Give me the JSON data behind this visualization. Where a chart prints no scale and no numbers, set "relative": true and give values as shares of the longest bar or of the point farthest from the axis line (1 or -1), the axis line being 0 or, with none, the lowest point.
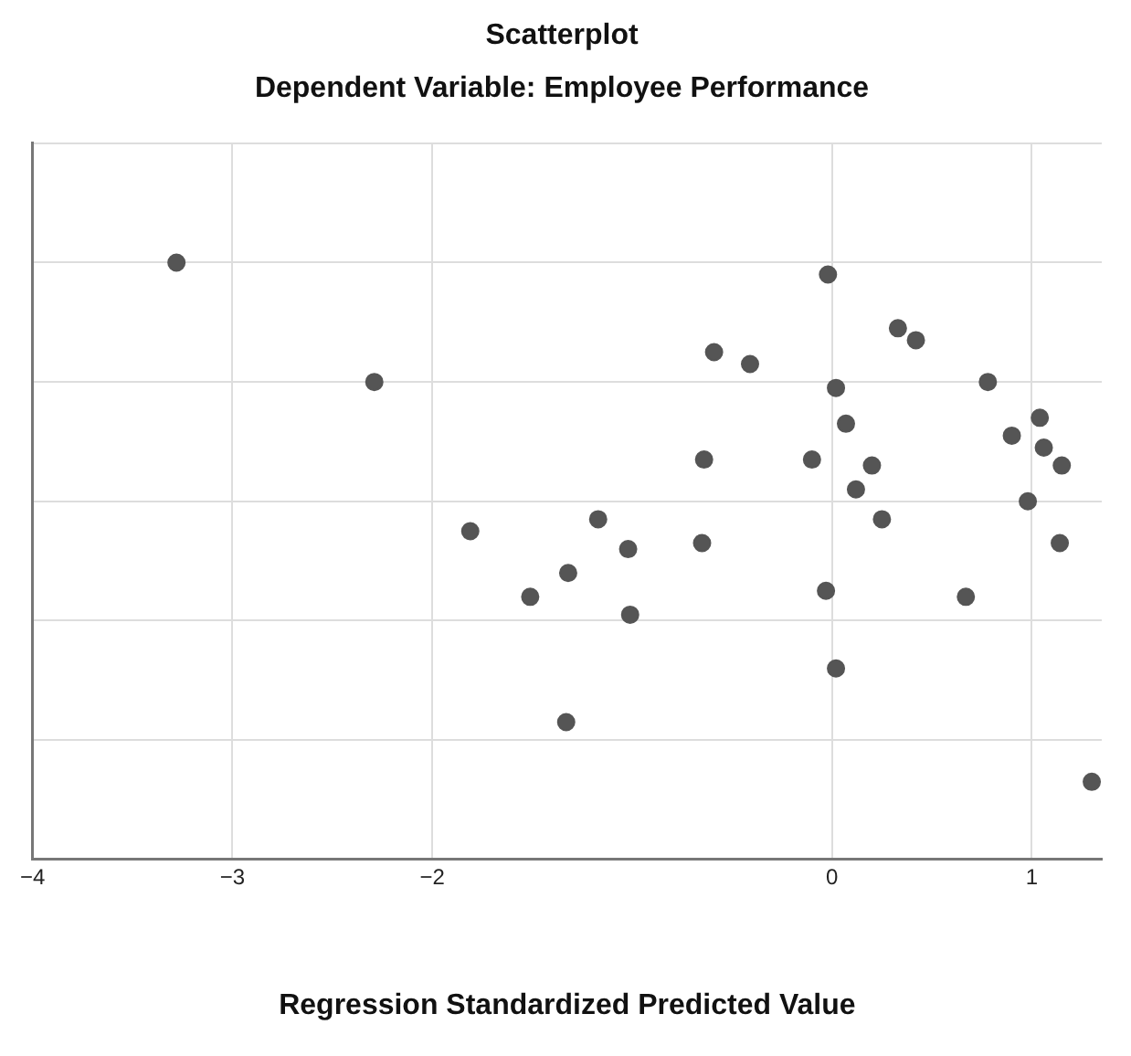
{
  "chart_data": {
    "type": "scatter",
    "title": "Scatterplot",
    "subtitle": "Dependent Variable: Employee Performance",
    "xlabel": "Regression Standardized Predicted Value",
    "relative": true,
    "xlim": [
      -4,
      1.35
    ],
    "xticks": [
      -4,
      -3,
      -2,
      0,
      1
    ],
    "grid": true,
    "marker": "circle",
    "legend": false,
    "series": [
      {
        "color": "#555555",
        "x": [
          -3.28,
          -2.29,
          -1.81,
          -0.02,
          0.33,
          0.42,
          -0.59,
          -0.41,
          0.02,
          0.78,
          0.07,
          1.04,
          0.9,
          1.06,
          1.15,
          -0.64,
          -0.1,
          0.2,
          0.12,
          0.98,
          -1.17,
          0.25,
          -0.65,
          -1.02,
          1.14,
          -1.32,
          -1.51,
          -0.03,
          0.67,
          -1.01,
          0.02,
          -1.33,
          1.3
        ],
        "values": [
          1.0,
          0.8,
          0.55,
          0.98,
          0.89,
          0.87,
          0.85,
          0.83,
          0.79,
          0.8,
          0.73,
          0.74,
          0.71,
          0.69,
          0.66,
          0.67,
          0.67,
          0.66,
          0.62,
          0.6,
          0.57,
          0.57,
          0.53,
          0.52,
          0.53,
          0.48,
          0.44,
          0.45,
          0.44,
          0.41,
          0.32,
          0.23,
          0.13
        ]
      }
    ]
  }
}
